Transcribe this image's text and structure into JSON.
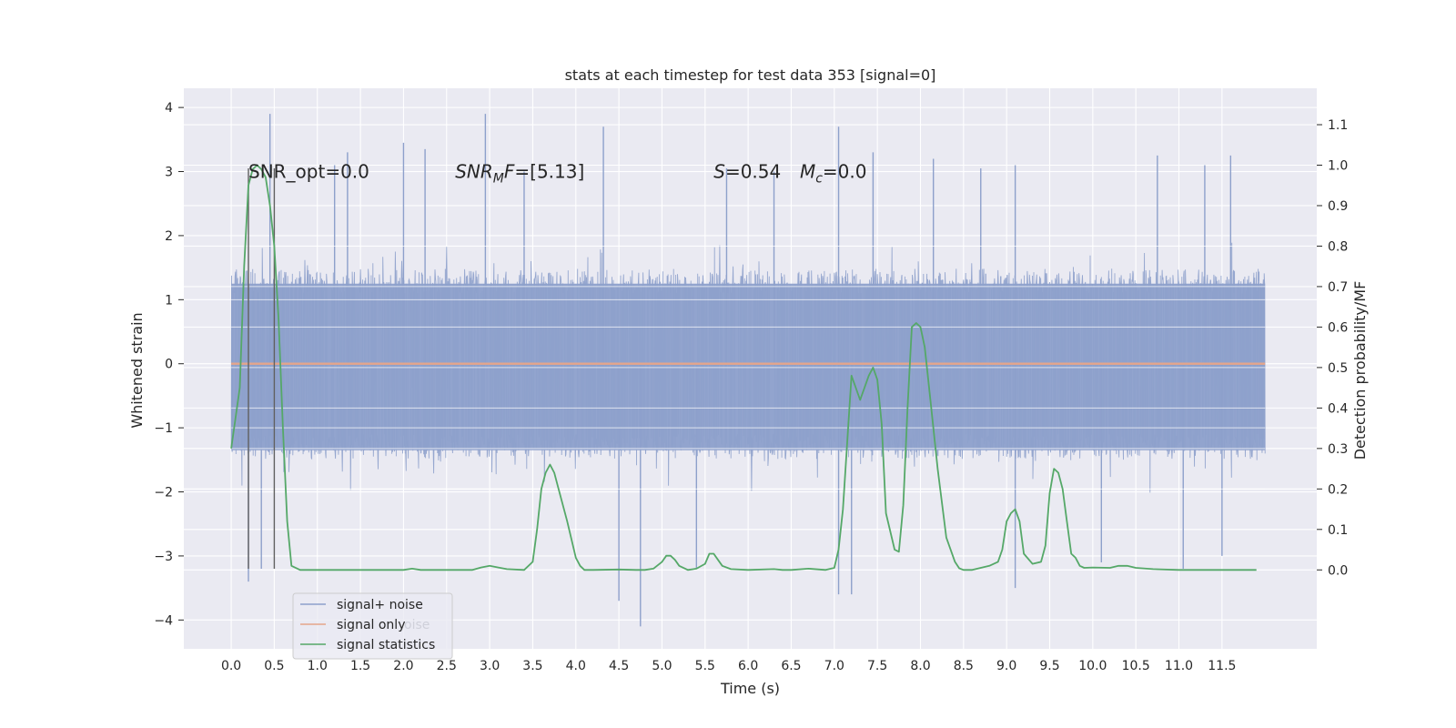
{
  "chart_data": {
    "type": "line",
    "title": "stats at each timestep for test data 353 [signal=0]",
    "xlabel": "Time (s)",
    "ylabel": "Whitened strain",
    "y2label": "Detection probability/MF",
    "xlim": [
      -0.55,
      12.6
    ],
    "ylim": [
      -4.45,
      4.3
    ],
    "y2lim": [
      -0.195,
      1.19
    ],
    "x_ticks": [
      0.0,
      0.5,
      1.0,
      1.5,
      2.0,
      2.5,
      3.0,
      3.5,
      4.0,
      4.5,
      5.0,
      5.5,
      6.0,
      6.5,
      7.0,
      7.5,
      8.0,
      8.5,
      9.0,
      9.5,
      10.0,
      10.5,
      11.0,
      11.5
    ],
    "x_tick_labels": [
      "0.0",
      "0.5",
      "1.0",
      "1.5",
      "2.0",
      "2.5",
      "3.0",
      "3.5",
      "4.0",
      "4.5",
      "5.0",
      "5.5",
      "6.0",
      "6.5",
      "7.0",
      "7.5",
      "8.0",
      "8.5",
      "9.0",
      "9.5",
      "10.0",
      "10.5",
      "11.0",
      "11.5"
    ],
    "y_ticks": [
      4,
      3,
      2,
      1,
      0,
      -1,
      -2,
      -3,
      -4
    ],
    "y_tick_labels": [
      "4",
      "3",
      "2",
      "1",
      "0",
      "−1",
      "−2",
      "−3",
      "−4"
    ],
    "y2_ticks": [
      1.1,
      1.0,
      0.9,
      0.8,
      0.7,
      0.6,
      0.5,
      0.4,
      0.3,
      0.2,
      0.1,
      0.0
    ],
    "y2_tick_labels": [
      "1.1",
      "1.0",
      "0.9",
      "0.8",
      "0.7",
      "0.6",
      "0.5",
      "0.4",
      "0.3",
      "0.2",
      "0.1",
      "0.0"
    ],
    "grid": true,
    "legend_position": "lower-left",
    "series": [
      {
        "name": "signal+ noise",
        "color": "#8da0cb",
        "x_range": [
          0.0,
          12.0
        ],
        "typical_band": [
          -1.35,
          1.25
        ],
        "peaks_high": [
          [
            0.45,
            3.9
          ],
          [
            1.2,
            3.1
          ],
          [
            1.35,
            3.3
          ],
          [
            2.0,
            3.45
          ],
          [
            2.25,
            3.35
          ],
          [
            2.95,
            3.9
          ],
          [
            3.4,
            3.0
          ],
          [
            4.32,
            3.7
          ],
          [
            5.75,
            3.05
          ],
          [
            6.3,
            3.0
          ],
          [
            7.05,
            3.7
          ],
          [
            7.45,
            3.3
          ],
          [
            8.15,
            3.2
          ],
          [
            8.7,
            3.05
          ],
          [
            9.1,
            3.1
          ],
          [
            10.75,
            3.25
          ],
          [
            11.3,
            3.1
          ],
          [
            11.6,
            3.25
          ]
        ],
        "peaks_low": [
          [
            0.2,
            -3.4
          ],
          [
            0.35,
            -3.2
          ],
          [
            4.5,
            -3.7
          ],
          [
            4.75,
            -4.1
          ],
          [
            5.4,
            -3.2
          ],
          [
            7.05,
            -3.6
          ],
          [
            7.2,
            -3.6
          ],
          [
            9.1,
            -3.5
          ],
          [
            10.1,
            -3.1
          ],
          [
            11.05,
            -3.2
          ],
          [
            11.5,
            -3.0
          ]
        ]
      },
      {
        "name": "signal only",
        "color": "#e5a58a",
        "x": [
          0.0,
          12.0
        ],
        "y": [
          0.0,
          0.0
        ]
      },
      {
        "name": "signal statistics",
        "color": "#55a868",
        "axis": "right",
        "x": [
          0.0,
          0.1,
          0.15,
          0.2,
          0.25,
          0.3,
          0.35,
          0.4,
          0.45,
          0.5,
          0.55,
          0.6,
          0.65,
          0.7,
          0.8,
          1.0,
          1.5,
          2.0,
          2.1,
          2.2,
          2.5,
          2.8,
          2.9,
          3.0,
          3.1,
          3.2,
          3.4,
          3.5,
          3.55,
          3.6,
          3.65,
          3.7,
          3.75,
          3.8,
          3.9,
          4.0,
          4.05,
          4.1,
          4.2,
          4.5,
          4.7,
          4.8,
          4.9,
          5.0,
          5.05,
          5.1,
          5.15,
          5.2,
          5.3,
          5.4,
          5.5,
          5.55,
          5.6,
          5.65,
          5.7,
          5.8,
          6.0,
          6.3,
          6.4,
          6.5,
          6.7,
          6.9,
          7.0,
          7.05,
          7.1,
          7.2,
          7.3,
          7.4,
          7.45,
          7.5,
          7.55,
          7.6,
          7.7,
          7.75,
          7.8,
          7.85,
          7.9,
          7.95,
          8.0,
          8.05,
          8.1,
          8.2,
          8.3,
          8.4,
          8.45,
          8.5,
          8.6,
          8.8,
          8.9,
          8.95,
          9.0,
          9.05,
          9.1,
          9.15,
          9.2,
          9.3,
          9.4,
          9.45,
          9.5,
          9.55,
          9.6,
          9.65,
          9.7,
          9.75,
          9.8,
          9.85,
          9.9,
          10.0,
          10.2,
          10.3,
          10.4,
          10.5,
          10.7,
          11.0,
          11.5,
          11.9
        ],
        "y": [
          0.3,
          0.45,
          0.75,
          0.95,
          0.99,
          1.0,
          0.99,
          0.97,
          0.9,
          0.8,
          0.62,
          0.35,
          0.12,
          0.01,
          0.0,
          0.0,
          0.0,
          0.0,
          0.003,
          0.0,
          0.0,
          0.0,
          0.006,
          0.01,
          0.006,
          0.002,
          0.0,
          0.02,
          0.1,
          0.2,
          0.24,
          0.26,
          0.24,
          0.2,
          0.12,
          0.03,
          0.01,
          0.0,
          0.0,
          0.001,
          0.0,
          0.0,
          0.003,
          0.02,
          0.035,
          0.035,
          0.025,
          0.01,
          0.0,
          0.003,
          0.015,
          0.04,
          0.04,
          0.025,
          0.01,
          0.002,
          0.0,
          0.002,
          0.0,
          0.0,
          0.003,
          0.0,
          0.005,
          0.05,
          0.15,
          0.48,
          0.42,
          0.48,
          0.5,
          0.47,
          0.36,
          0.14,
          0.05,
          0.045,
          0.16,
          0.4,
          0.6,
          0.61,
          0.6,
          0.55,
          0.45,
          0.25,
          0.08,
          0.02,
          0.004,
          0.0,
          0.0,
          0.01,
          0.02,
          0.05,
          0.12,
          0.14,
          0.15,
          0.12,
          0.04,
          0.015,
          0.02,
          0.06,
          0.19,
          0.25,
          0.24,
          0.2,
          0.12,
          0.04,
          0.03,
          0.01,
          0.005,
          0.006,
          0.005,
          0.01,
          0.01,
          0.005,
          0.002,
          0.0,
          0.0,
          0.0
        ]
      }
    ],
    "markers": {
      "vertical_lines_x": [
        0.2,
        0.5
      ],
      "color": "#606060"
    },
    "annotations": [
      "SNR_opt=0.0",
      "SNRMF=[5.13]",
      "S=0.54",
      "Mc=0.0"
    ],
    "annotation_parts": {
      "snr_mf_symbol": "SNR",
      "snr_mf_sub": "M",
      "snr_mf_tail": "F",
      "snr_mf_value": "=[5.13]",
      "s_symbol": "S",
      "s_value": "=0.54",
      "mc_symbol": "M",
      "mc_sub": "c",
      "mc_value": "=0.0"
    },
    "legend": [
      "signal+ noise",
      "signal only",
      "signal statistics"
    ],
    "legend_overlap_text": "oise",
    "colors": {
      "plot_background": "#eaeaf2",
      "grid": "#ffffff"
    }
  }
}
